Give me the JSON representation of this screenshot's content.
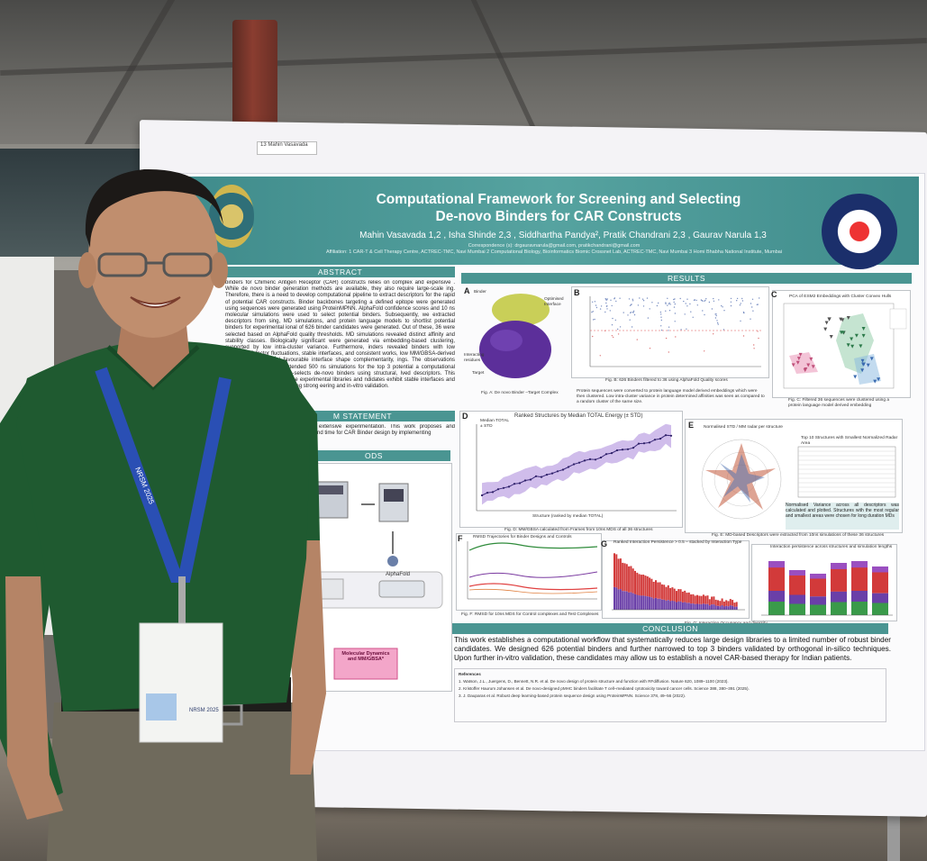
{
  "poster": {
    "name_tag": "13 Mahin Vasavada",
    "title_line1": "Computational Framework for Screening and Selecting",
    "title_line2": "De-novo Binders for CAR Constructs",
    "authors": "Mahin Vasavada 1,2 , Isha Shinde 2,3 , Siddhartha Pandya², Pratik Chandrani 2,3 , Gaurav Narula 1,3",
    "correspondence": "Correspondence (s): drgauravnarula@gmail.com, pratikchandrani@gmail.com",
    "affiliation": "Affiliation: 1 CAR-T & Cell Therapy Centre, ACTREC-TMC, Navi Mumbai 2 Computational Biology, Bioinformatics Biomic Crossnet Lab, ACTREC-TMC, Navi Mumbai 3 Homi Bhabha National Institute, Mumbai",
    "sections": {
      "abstract": "ABSTRACT",
      "problem": "M STATEMENT",
      "methods": "ODS",
      "results": "RESULTS",
      "conclusion": "CONCLUSION"
    },
    "abstract_text": "binders for Chimeric Antigen Receptor (CAR) constructs relies on complex and expensive . While de novo binder generation methods are available, they also require large-scale ing. Therefore, there is a need to develop computational pipeline to extract descriptors for the rapid of potential CAR constructs. Binder backbones targeting a defined epitope were generated using sequences were generated using ProteinMPNN. AlphaFold confidence scores and 10 ns molecular simulations were used to select potential binders. Subsequently, we extracted descriptors from sing, MD simulations, and protein language models to shortlist potential binders for experimental ional of 626 binder candidates were generated. Out of these, 36 were selected based on AlphaFold quality thresholds. MD simulations revealed distinct affinity and stability classes. Biologically significant were generated via embedding-based clustering, supported by low intra-cluster variance. Furthermore, inders revealed binders with low interfacial B-factor fluctuations, stable interfaces, and consistent works, low MM/GBSA-derived binding energies, and favourable interface shape complementarity, ings. The observations remained consistent in extended 500 ns simulations for the top 3 potential a computational pipeline that reliably down-selects de-novo binders using structural, lved descriptors. This reduces dependence on large experimental libraries and ndidates exhibit stable interfaces and favourable energetics, providing strong eering and in-vitro validation.",
    "problem_text": "kes extensive experimentation. This work proposes and around time for CAR Binder design by implementing",
    "methods_labels": {
      "alphafold": "AlphaFold",
      "md": "Molecular Dynamics and MM/GBSA*"
    },
    "panel_labels": [
      "A",
      "B",
      "C",
      "D",
      "E",
      "F",
      "G"
    ],
    "panel_a_labels": [
      "Binder",
      "Optimised Interface",
      "Interacting residues",
      "Target"
    ],
    "panel_a_caption": "Fig. A: De novo Binder –Target Complex",
    "panel_b_caption": "Fig. B: 626 Binders filtered to 36 using AlphaFold Quality scores",
    "panel_c_title": "PCA of ESM2 Embeddings with Cluster Convex Hulls",
    "panel_c_caption": "Fig. C: Filtered 36 sequences were clustered using a protein language model derived embedding",
    "panel_bc_note": "Protein sequences were converted to protein language model derived embeddings which were then clustered. Low intra-cluster variance in protein determined affinities was seen as compared to a random cluster of the same size.",
    "panel_d_title": "Ranked Structures by Median TOTAL Energy (± STD)",
    "panel_d_legend": [
      "Median TOTAL",
      "± STD"
    ],
    "panel_d_xlabel": "Structure (ranked by median TOTAL)",
    "panel_d_caption": "Fig. D: MM/GBSA calculated from Frames from 10ns MDS of all 36 structures",
    "panel_e_title": "Normalised STD / MM radar per structure",
    "panel_e_table_title": "Top 10 Structures with Smallest Normalized Radar Area",
    "panel_e_note": "Normalised Variance across all descriptors was calculated and plotted. Structures with the most regular and smallest areas were chosen for long duration MDs",
    "panel_e_caption": "Fig. E: MD-based Descriptors were extracted from 10ns simulations of these 36 structures",
    "panel_f_title": "RMSD Trajectories for Binder Designs and Controls",
    "panel_f_caption": "Fig. F: RMSD for 10ns MDS for Control complexes and Test Complexes",
    "panel_g_title": "Ranked Interaction Persistence > 0.5 – stacked by Interaction Type",
    "panel_g2_title": "Interaction persistence across structures and simulation lengths",
    "panel_g_caption": "Fig. G: Interaction Occupancy and diversity",
    "conclusion_text": "This work establishes a computational workflow that systematically reduces large design libraries to a limited number of robust binder candidates. We designed 626 potential binders and further narrowed to top 3 binders validated by orthogonal in-silico techniques. Upon further in-vitro validation, these candidates may allow us to establish a novel CAR-based therapy for Indian patients.",
    "references_title": "References",
    "references": [
      "1. Watson, J.L., Juergens, D., Bennett, N.R. et al. De novo design of protein structure and function with RFdiffusion. Nature 620, 1089–1100 (2023).",
      "2. Kristoffer Haurum Johansen et al. De novo-designed pMHC binders facilitate T cell–mediated cytotoxicity toward cancer cells. Science 388, 380–391 (2025).",
      "3. J. Dauparas et al. Robust deep learning-based protein sequence design using ProteinMPNN. Science 378, 49–56 (2022)."
    ]
  },
  "lanyard_text": "NRSM 2025",
  "badge_text": "NRSM 2025",
  "colors": {
    "band_teal": "#4f9c99",
    "shirt_green": "#1f5a30",
    "lanyard_blue": "#2a4fb4",
    "violet": "#6a3fa8",
    "red_bar": "#d23a3a"
  }
}
